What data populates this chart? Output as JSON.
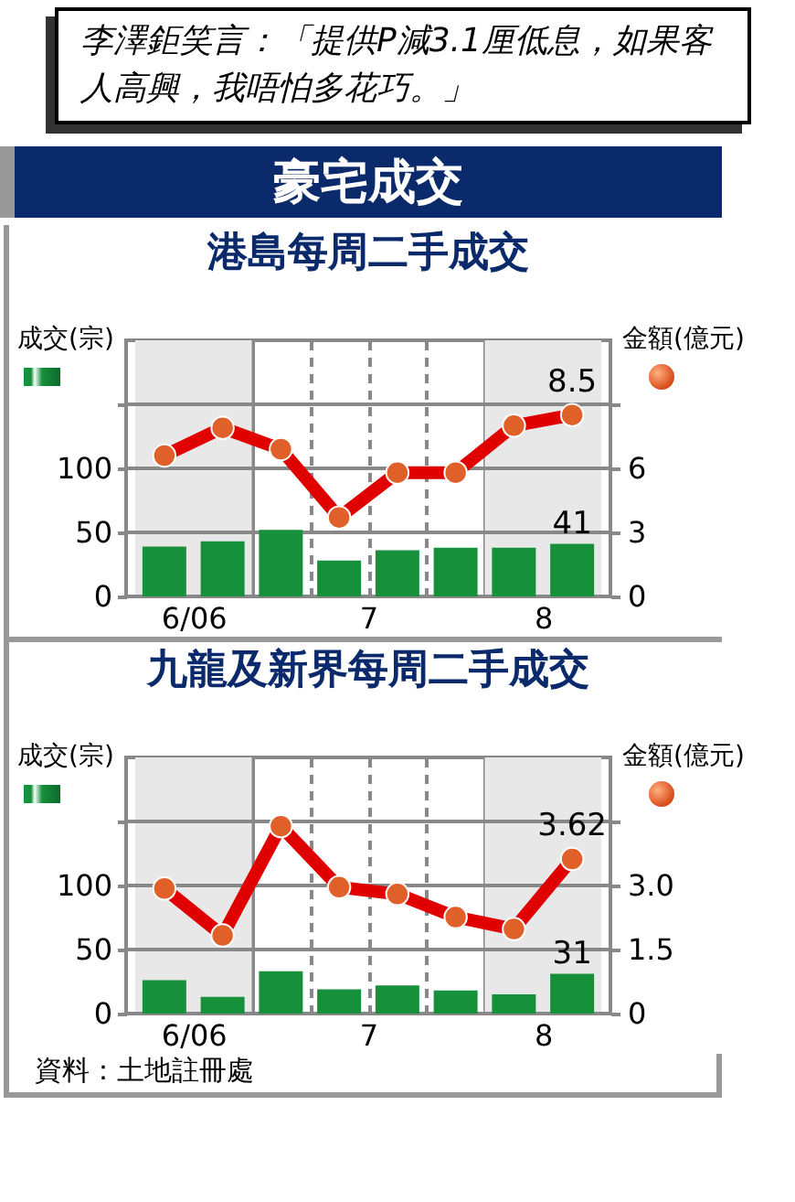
{
  "chart_data": [
    {
      "type": "other",
      "annotations": [
        "李澤鉅笑言：「提供P減3.1厘低息，如果客人高興，我唔怕多花巧。」"
      ],
      "title": "豪宅成交"
    },
    {
      "type": "bar",
      "title": "港島每周二手成交",
      "ylabel": "成交(宗)",
      "y2label": "金額(億元)",
      "x": [
        "--06-20T12:00",
        "--06-27T12:00",
        "--07-04T12:00",
        "--07-11T12:00",
        "--07-18T12:00",
        "--07-25T12:00",
        "--08-01T12:00",
        "--08-08T12:00"
      ],
      "xlim": [
        "--06-17",
        "--08-12"
      ],
      "xticks": [
        {
          "value": "--06-24",
          "label": "6/06"
        },
        {
          "value": "--07-01",
          "label": null
        },
        {
          "value": "--07-08",
          "label": null
        },
        {
          "value": "--07-15",
          "label": "7"
        },
        {
          "value": "--07-22",
          "label": null
        },
        {
          "value": "--07-29",
          "label": null
        },
        {
          "value": "--08-05",
          "label": "8"
        }
      ],
      "ylim": [
        0,
        200
      ],
      "yticks": [
        0,
        50,
        100,
        {
          "value": 150,
          "label": null
        }
      ],
      "y2lim": [
        0,
        12
      ],
      "y2ticks": [
        0,
        3,
        6,
        {
          "value": 9,
          "label": null
        }
      ],
      "grid": true,
      "marker": "circle",
      "bands": [
        {
          "axis": "x",
          "from": "--06-17",
          "to": "--07-01",
          "color": "#e8e8e8"
        },
        {
          "axis": "x",
          "from": "--07-29",
          "to": "--08-12",
          "color": "#e8e8e8"
        }
      ],
      "series": [
        {
          "type": "bar",
          "color": "#17903c",
          "values": [
            39,
            43,
            52,
            28,
            36,
            38,
            38,
            41
          ],
          "value_labels": [
            null,
            null,
            null,
            null,
            null,
            null,
            null,
            "41"
          ]
        },
        {
          "type": "line",
          "axis": "y2",
          "color": "#e00000",
          "values": [
            6.6,
            7.9,
            6.9,
            3.7,
            5.8,
            5.8,
            8.0,
            8.5
          ],
          "value_labels": [
            null,
            null,
            null,
            null,
            null,
            null,
            null,
            "8.5"
          ]
        }
      ]
    },
    {
      "type": "bar",
      "title": "九龍及新界每周二手成交",
      "ylabel": "成交(宗)",
      "y2label": "金額(億元)",
      "x": [
        "--06-20T12:00",
        "--06-27T12:00",
        "--07-04T12:00",
        "--07-11T12:00",
        "--07-18T12:00",
        "--07-25T12:00",
        "--08-01T12:00",
        "--08-08T12:00"
      ],
      "xlim": [
        "--06-17",
        "--08-12"
      ],
      "xticks": [
        {
          "value": "--06-24",
          "label": "6/06"
        },
        {
          "value": "--07-01",
          "label": null
        },
        {
          "value": "--07-08",
          "label": null
        },
        {
          "value": "--07-15",
          "label": "7"
        },
        {
          "value": "--07-22",
          "label": null
        },
        {
          "value": "--07-29",
          "label": null
        },
        {
          "value": "--08-05",
          "label": "8"
        }
      ],
      "ylim": [
        0,
        200
      ],
      "yticks": [
        0,
        50,
        100,
        {
          "value": 150,
          "label": null
        }
      ],
      "y2lim": [
        0,
        6
      ],
      "y2ticks": [
        0,
        1.5,
        {
          "value": 3,
          "label": "3.0"
        },
        {
          "value": 4.5,
          "label": null
        }
      ],
      "grid": true,
      "marker": "circle",
      "bands": [
        {
          "axis": "x",
          "from": "--06-17",
          "to": "--07-01",
          "color": "#e8e8e8"
        },
        {
          "axis": "x",
          "from": "--07-29",
          "to": "--08-12",
          "color": "#e8e8e8"
        }
      ],
      "series": [
        {
          "type": "bar",
          "color": "#17903c",
          "values": [
            26,
            13,
            33,
            19,
            22,
            18,
            15,
            31
          ],
          "value_labels": [
            null,
            null,
            null,
            null,
            null,
            null,
            null,
            "31"
          ]
        },
        {
          "type": "line",
          "axis": "y2",
          "color": "#e00000",
          "values": [
            2.93,
            1.83,
            4.39,
            2.96,
            2.8,
            2.26,
            1.98,
            3.62
          ],
          "value_labels": [
            null,
            null,
            null,
            null,
            null,
            null,
            null,
            "3.62"
          ]
        }
      ],
      "annotations": [
        "資料：土地註冊處"
      ]
    }
  ]
}
